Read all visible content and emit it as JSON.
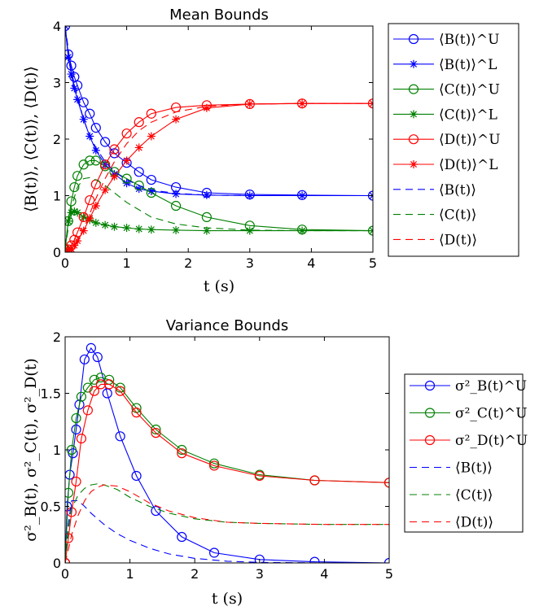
{
  "chart_data": [
    {
      "type": "line",
      "title": "Mean Bounds",
      "xlabel": "t (s)",
      "ylabel": "⟨B(t)⟩, ⟨C(t)⟩, ⟨D(t)⟩",
      "xlim": [
        0,
        5
      ],
      "ylim": [
        0,
        4
      ],
      "xticks": [
        "0",
        "1",
        "2",
        "3",
        "4",
        "5"
      ],
      "yticks": [
        "0",
        "1",
        "2",
        "3",
        "4"
      ],
      "grid": false,
      "legend_position": "outside-right",
      "series": [
        {
          "name": "⟨B(t)⟩^U",
          "color": "#0000ff",
          "style": "solid",
          "marker": "circle",
          "x": [
            0,
            0.05,
            0.1,
            0.15,
            0.2,
            0.3,
            0.4,
            0.5,
            0.65,
            0.8,
            1.0,
            1.2,
            1.4,
            1.8,
            2.3,
            3.0,
            3.85,
            5.0
          ],
          "y": [
            4.0,
            3.5,
            3.3,
            3.1,
            2.95,
            2.65,
            2.45,
            2.2,
            1.95,
            1.75,
            1.58,
            1.42,
            1.28,
            1.15,
            1.05,
            1.02,
            1.01,
            1.0
          ]
        },
        {
          "name": "⟨B(t)⟩^L",
          "color": "#0000ff",
          "style": "solid",
          "marker": "star",
          "x": [
            0,
            0.05,
            0.1,
            0.15,
            0.2,
            0.3,
            0.4,
            0.5,
            0.65,
            0.8,
            1.0,
            1.2,
            1.4,
            1.8,
            2.3,
            3.0,
            3.85,
            5.0
          ],
          "y": [
            4.0,
            3.45,
            3.15,
            2.9,
            2.7,
            2.35,
            2.05,
            1.8,
            1.55,
            1.38,
            1.22,
            1.12,
            1.08,
            1.03,
            1.01,
            1.0,
            1.0,
            1.0
          ]
        },
        {
          "name": "⟨C(t)⟩^U",
          "color": "#008000",
          "style": "solid",
          "marker": "circle",
          "x": [
            0,
            0.05,
            0.1,
            0.15,
            0.2,
            0.3,
            0.4,
            0.5,
            0.65,
            0.8,
            1.0,
            1.2,
            1.4,
            1.8,
            2.3,
            3.0,
            3.85,
            5.0
          ],
          "y": [
            0.05,
            0.55,
            0.9,
            1.15,
            1.35,
            1.55,
            1.62,
            1.62,
            1.52,
            1.42,
            1.3,
            1.18,
            1.05,
            0.82,
            0.62,
            0.47,
            0.4,
            0.38
          ]
        },
        {
          "name": "⟨C(t)⟩^L",
          "color": "#008000",
          "style": "solid",
          "marker": "star",
          "x": [
            0,
            0.05,
            0.1,
            0.15,
            0.2,
            0.3,
            0.4,
            0.5,
            0.65,
            0.8,
            1.0,
            1.2,
            1.4,
            1.8,
            2.3,
            3.0,
            3.85,
            5.0
          ],
          "y": [
            0.05,
            0.55,
            0.7,
            0.72,
            0.7,
            0.62,
            0.57,
            0.52,
            0.48,
            0.45,
            0.43,
            0.41,
            0.4,
            0.39,
            0.38,
            0.38,
            0.38,
            0.38
          ]
        },
        {
          "name": "⟨D(t)⟩^U",
          "color": "#ff0000",
          "style": "solid",
          "marker": "circle",
          "x": [
            0,
            0.05,
            0.1,
            0.15,
            0.2,
            0.3,
            0.4,
            0.5,
            0.65,
            0.8,
            1.0,
            1.2,
            1.4,
            1.8,
            2.3,
            3.0,
            3.85,
            5.0
          ],
          "y": [
            0.0,
            0.05,
            0.12,
            0.22,
            0.35,
            0.62,
            0.92,
            1.2,
            1.55,
            1.82,
            2.1,
            2.3,
            2.45,
            2.56,
            2.6,
            2.62,
            2.63,
            2.63
          ]
        },
        {
          "name": "⟨D(t)⟩^L",
          "color": "#ff0000",
          "style": "solid",
          "marker": "star",
          "x": [
            0,
            0.05,
            0.1,
            0.15,
            0.2,
            0.3,
            0.4,
            0.5,
            0.65,
            0.8,
            1.0,
            1.2,
            1.4,
            1.8,
            2.3,
            3.0,
            3.85,
            5.0
          ],
          "y": [
            0.0,
            0.02,
            0.06,
            0.12,
            0.2,
            0.38,
            0.6,
            0.82,
            1.1,
            1.34,
            1.62,
            1.85,
            2.05,
            2.35,
            2.55,
            2.62,
            2.63,
            2.63
          ]
        },
        {
          "name": "⟨B(t)⟩",
          "color": "#0000ff",
          "style": "dashed",
          "marker": "none",
          "x": [
            0,
            0.1,
            0.2,
            0.3,
            0.4,
            0.5,
            0.65,
            0.8,
            1.0,
            1.2,
            1.4,
            1.8,
            2.3,
            3.0,
            4.0,
            5.0
          ],
          "y": [
            4.0,
            3.2,
            2.75,
            2.35,
            2.05,
            1.85,
            1.6,
            1.42,
            1.28,
            1.18,
            1.1,
            1.04,
            1.01,
            1.0,
            1.0,
            1.0
          ]
        },
        {
          "name": "⟨C(t)⟩",
          "color": "#008000",
          "style": "dashed",
          "marker": "none",
          "x": [
            0,
            0.1,
            0.2,
            0.3,
            0.4,
            0.5,
            0.65,
            0.8,
            1.0,
            1.2,
            1.4,
            1.8,
            2.3,
            3.0,
            4.0,
            5.0
          ],
          "y": [
            0.05,
            0.8,
            1.15,
            1.3,
            1.32,
            1.28,
            1.18,
            1.05,
            0.88,
            0.75,
            0.62,
            0.5,
            0.43,
            0.39,
            0.38,
            0.38
          ]
        },
        {
          "name": "⟨D(t)⟩",
          "color": "#ff0000",
          "style": "dashed",
          "marker": "none",
          "x": [
            0,
            0.1,
            0.2,
            0.3,
            0.4,
            0.5,
            0.65,
            0.8,
            1.0,
            1.2,
            1.4,
            1.8,
            2.3,
            3.0,
            4.0,
            5.0
          ],
          "y": [
            0.0,
            0.05,
            0.18,
            0.4,
            0.68,
            0.95,
            1.3,
            1.6,
            1.92,
            2.15,
            2.3,
            2.48,
            2.58,
            2.62,
            2.63,
            2.63
          ]
        }
      ]
    },
    {
      "type": "line",
      "title": "Variance Bounds",
      "xlabel": "t (s)",
      "ylabel": "σ²_B(t), σ²_C(t), σ²_D(t)",
      "xlim": [
        0,
        5
      ],
      "ylim": [
        0,
        2
      ],
      "xticks": [
        "0",
        "1",
        "2",
        "3",
        "4",
        "5"
      ],
      "yticks": [
        "0",
        "0.5",
        "1",
        "1.5",
        "2"
      ],
      "grid": false,
      "legend_position": "outside-right",
      "series": [
        {
          "name": "σ²_B(t)^U",
          "color": "#0000ff",
          "style": "solid",
          "marker": "circle",
          "x": [
            0,
            0.03,
            0.07,
            0.12,
            0.17,
            0.22,
            0.3,
            0.4,
            0.5,
            0.65,
            0.85,
            1.1,
            1.4,
            1.8,
            2.3,
            3.0,
            3.85,
            5.0
          ],
          "y": [
            0.0,
            0.5,
            0.78,
            0.97,
            1.18,
            1.4,
            1.8,
            1.9,
            1.82,
            1.5,
            1.12,
            0.77,
            0.46,
            0.23,
            0.09,
            0.03,
            0.01,
            0.0
          ]
        },
        {
          "name": "σ²_C(t)^U",
          "color": "#008000",
          "style": "solid",
          "marker": "circle",
          "x": [
            0,
            0.05,
            0.1,
            0.17,
            0.25,
            0.35,
            0.45,
            0.55,
            0.68,
            0.85,
            1.1,
            1.4,
            1.8,
            2.3,
            3.0,
            3.85,
            5.0
          ],
          "y": [
            0.0,
            0.62,
            1.0,
            1.28,
            1.47,
            1.55,
            1.62,
            1.64,
            1.62,
            1.55,
            1.37,
            1.18,
            1.0,
            0.88,
            0.78,
            0.73,
            0.71
          ]
        },
        {
          "name": "σ²_D(t)^U",
          "color": "#ff0000",
          "style": "solid",
          "marker": "circle",
          "x": [
            0,
            0.05,
            0.1,
            0.17,
            0.25,
            0.35,
            0.45,
            0.55,
            0.68,
            0.85,
            1.1,
            1.4,
            1.8,
            2.3,
            3.0,
            3.85,
            5.0
          ],
          "y": [
            0.0,
            0.22,
            0.45,
            0.72,
            1.1,
            1.35,
            1.52,
            1.58,
            1.58,
            1.52,
            1.33,
            1.15,
            0.97,
            0.86,
            0.77,
            0.73,
            0.71
          ]
        },
        {
          "name": "⟨B(t)⟩",
          "color": "#0000ff",
          "style": "dashed",
          "marker": "none",
          "x": [
            0,
            0.05,
            0.1,
            0.2,
            0.3,
            0.4,
            0.6,
            0.8,
            1.0,
            1.3,
            1.6,
            2.0,
            2.5,
            3.0,
            4.0,
            5.0
          ],
          "y": [
            0.0,
            0.35,
            0.55,
            0.55,
            0.5,
            0.44,
            0.34,
            0.26,
            0.2,
            0.13,
            0.08,
            0.04,
            0.015,
            0.005,
            0.0,
            0.0
          ]
        },
        {
          "name": "⟨C(t)⟩",
          "color": "#008000",
          "style": "dashed",
          "marker": "none",
          "x": [
            0,
            0.05,
            0.1,
            0.2,
            0.3,
            0.4,
            0.5,
            0.6,
            0.8,
            1.0,
            1.3,
            1.6,
            2.0,
            2.5,
            3.0,
            4.0,
            5.0
          ],
          "y": [
            0.0,
            0.3,
            0.48,
            0.6,
            0.66,
            0.69,
            0.7,
            0.69,
            0.65,
            0.58,
            0.5,
            0.44,
            0.39,
            0.36,
            0.35,
            0.34,
            0.34
          ]
        },
        {
          "name": "⟨D(t)⟩",
          "color": "#ff0000",
          "style": "dashed",
          "marker": "none",
          "x": [
            0,
            0.05,
            0.1,
            0.2,
            0.3,
            0.4,
            0.5,
            0.6,
            0.8,
            1.0,
            1.3,
            1.6,
            2.0,
            2.5,
            3.0,
            4.0,
            5.0
          ],
          "y": [
            0.0,
            0.12,
            0.25,
            0.42,
            0.55,
            0.63,
            0.67,
            0.69,
            0.68,
            0.63,
            0.53,
            0.46,
            0.4,
            0.36,
            0.35,
            0.34,
            0.34
          ]
        }
      ]
    }
  ]
}
